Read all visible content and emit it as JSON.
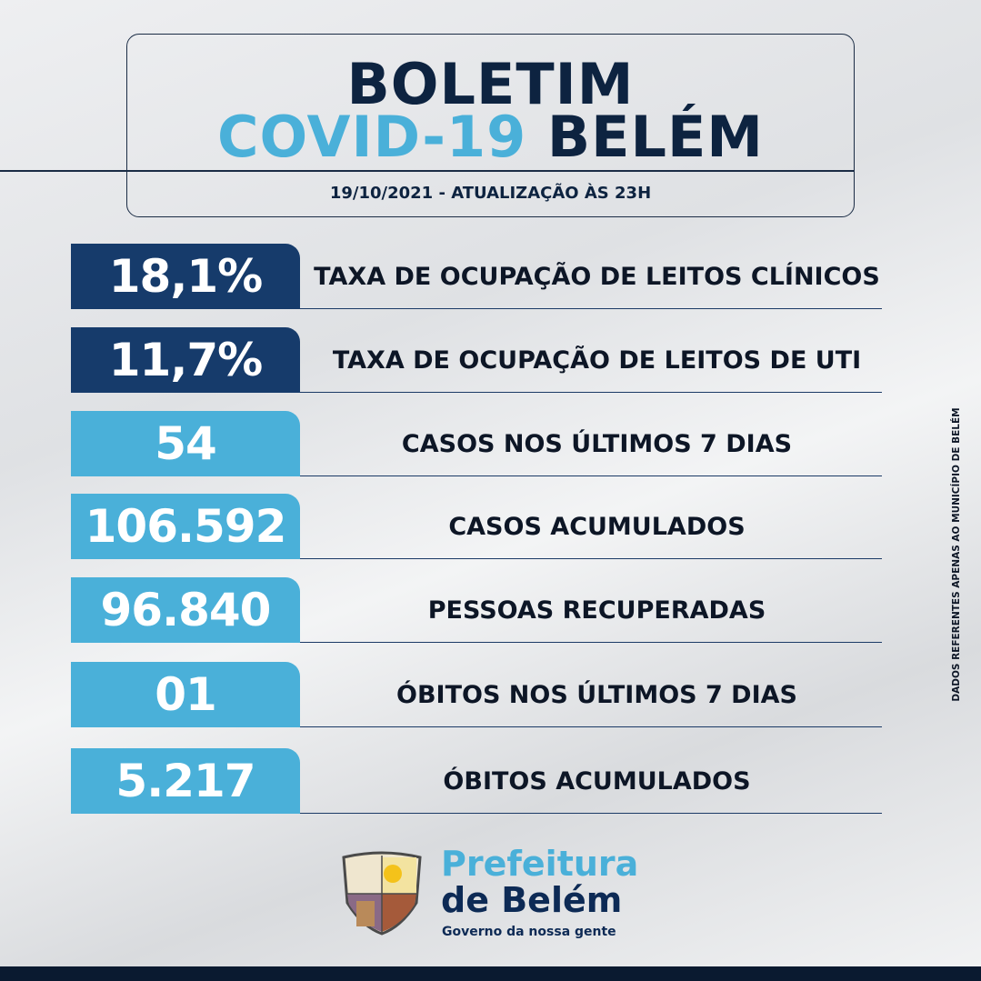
{
  "header": {
    "title_line1": "BOLETIM",
    "title_covid": "COVID-19",
    "title_city": "BELÉM",
    "date_line": "19/10/2021 - ATUALIZAÇÃO ÀS 23H"
  },
  "stats": [
    {
      "value": "18,1%",
      "label": "TAXA DE OCUPAÇÃO DE LEITOS CLÍNICOS",
      "color": "#163b6b"
    },
    {
      "value": "11,7%",
      "label": "TAXA DE OCUPAÇÃO DE LEITOS DE UTI",
      "color": "#163b6b"
    },
    {
      "value": "54",
      "label": "CASOS NOS ÚLTIMOS 7 DIAS",
      "color": "#4ab0d9"
    },
    {
      "value": "106.592",
      "label": "CASOS ACUMULADOS",
      "color": "#4ab0d9"
    },
    {
      "value": "96.840",
      "label": "PESSOAS RECUPERADAS",
      "color": "#4ab0d9"
    },
    {
      "value": "01",
      "label": "ÓBITOS NOS ÚLTIMOS 7 DIAS",
      "color": "#4ab0d9"
    },
    {
      "value": "5.217",
      "label": "ÓBITOS ACUMULADOS",
      "color": "#4ab0d9"
    }
  ],
  "side_note": "DADOS REFERENTES APENAS AO MUNICÍPIO DE BELÉM",
  "footer": {
    "brand_line1": "Prefeitura",
    "brand_line2": "de Belém",
    "slogan": "Governo da nossa gente",
    "logo_icon": "coat-of-arms-icon"
  }
}
